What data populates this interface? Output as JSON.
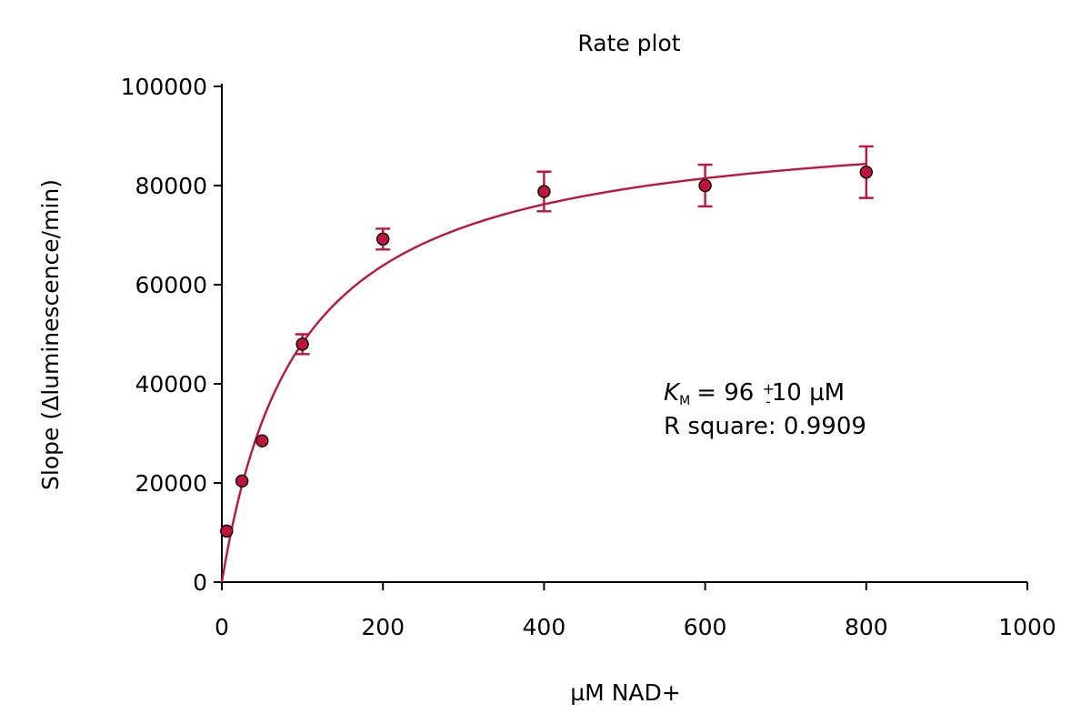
{
  "chart_data": {
    "type": "scatter",
    "title": "Rate plot",
    "xlabel": "µM NAD+",
    "ylabel": "Slope (Δluminescence/min)",
    "xlim": [
      0,
      1000
    ],
    "ylim": [
      0,
      100000
    ],
    "xticks": [
      0,
      200,
      400,
      600,
      800,
      1000
    ],
    "yticks": [
      0,
      20000,
      40000,
      60000,
      80000,
      100000
    ],
    "x_tick_labels": [
      "0",
      "200",
      "400",
      "600",
      "800",
      "1000"
    ],
    "y_tick_labels": [
      "0",
      "20000",
      "40000",
      "60000",
      "80000",
      "100000"
    ],
    "grid": false,
    "series": [
      {
        "points": [
          {
            "x": 6,
            "y": 10300,
            "err": 0
          },
          {
            "x": 25,
            "y": 20400,
            "err": 0
          },
          {
            "x": 50,
            "y": 28500,
            "err": 0
          },
          {
            "x": 100,
            "y": 48000,
            "err": 2000
          },
          {
            "x": 200,
            "y": 69200,
            "err": 2100
          },
          {
            "x": 400,
            "y": 78800,
            "err": 4000
          },
          {
            "x": 600,
            "y": 80000,
            "err": 4200
          },
          {
            "x": 800,
            "y": 82700,
            "err": 5200
          }
        ]
      }
    ],
    "fit": {
      "model": "michaelis-menten",
      "vmax": 94500,
      "km": 96,
      "x_range": [
        0,
        800
      ]
    },
    "annotation": {
      "km_symbol": "K",
      "km_subscript": "M",
      "km_value": "= 96",
      "km_pm_plus": "+",
      "km_pm_minus": "-",
      "km_error": "10 µM",
      "r_square": "R square: 0.9909"
    },
    "colors": {
      "series": "#c0143c",
      "axis": "#000000"
    }
  }
}
